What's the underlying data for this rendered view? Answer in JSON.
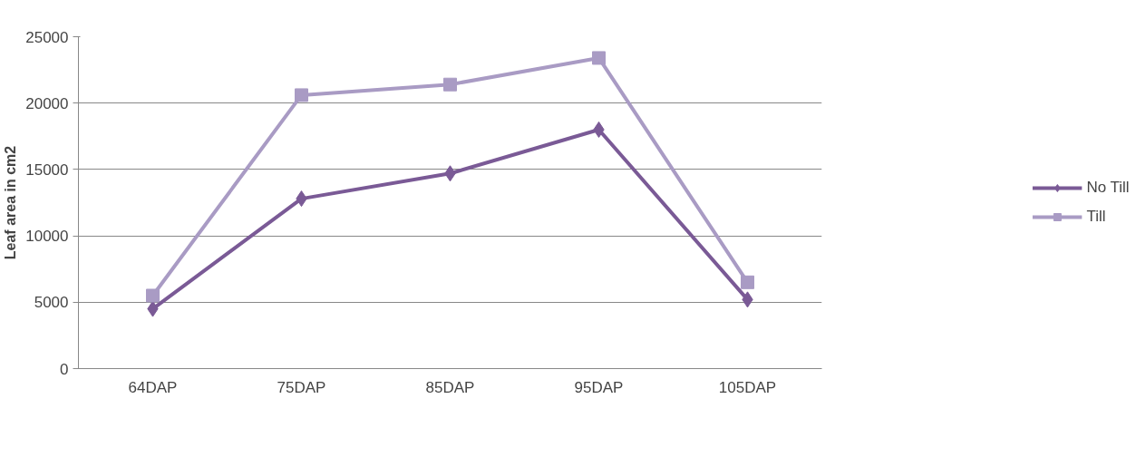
{
  "chart_data": {
    "type": "line",
    "ylabel": "Leaf area in cm2",
    "categories": [
      "64DAP",
      "75DAP",
      "85DAP",
      "95DAP",
      "105DAP"
    ],
    "series": [
      {
        "name": "No Till",
        "color": "#7a5a96",
        "marker": "diamond",
        "values": [
          4500,
          12800,
          14700,
          18000,
          5200
        ]
      },
      {
        "name": "Till",
        "color": "#a99bc4",
        "marker": "square",
        "values": [
          5500,
          20600,
          21400,
          23400,
          6500
        ]
      }
    ],
    "ylim": [
      0,
      25000
    ],
    "yticks": [
      0,
      5000,
      10000,
      15000,
      20000,
      25000
    ],
    "grid": "y",
    "legend": "right",
    "line_style": "solid"
  }
}
